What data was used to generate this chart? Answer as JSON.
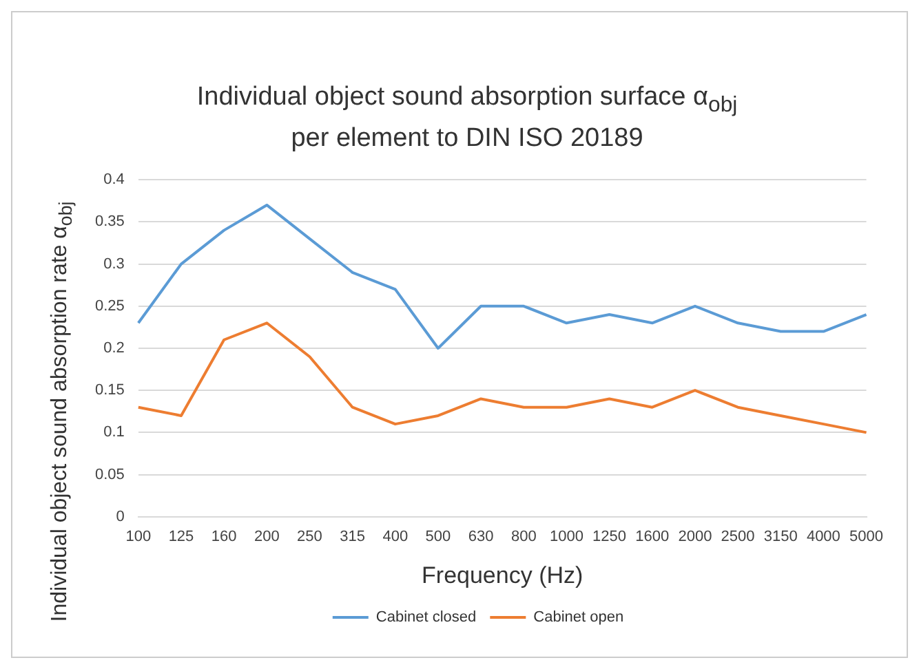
{
  "chart_data": {
    "type": "line",
    "title": "Individual object sound absorption surface α$_{obj}$ per element to DIN ISO 20189",
    "xlabel": "Frequency (Hz)",
    "ylabel": "Individual object sound absorption rate α$_{obj}$",
    "categories": [
      "100",
      "125",
      "160",
      "200",
      "250",
      "315",
      "400",
      "500",
      "630",
      "800",
      "1000",
      "1250",
      "1600",
      "2000",
      "2500",
      "3150",
      "4000",
      "5000"
    ],
    "series": [
      {
        "name": "Cabinet closed",
        "color": "#5b9bd5",
        "values": [
          0.23,
          0.3,
          0.34,
          0.37,
          0.33,
          0.29,
          0.27,
          0.2,
          0.25,
          0.25,
          0.23,
          0.24,
          0.23,
          0.25,
          0.23,
          0.22,
          0.22,
          0.24
        ]
      },
      {
        "name": "Cabinet open",
        "color": "#ed7d31",
        "values": [
          0.13,
          0.12,
          0.21,
          0.23,
          0.19,
          0.13,
          0.11,
          0.12,
          0.14,
          0.13,
          0.13,
          0.14,
          0.13,
          0.15,
          0.13,
          0.12,
          0.11,
          0.1
        ]
      }
    ],
    "ylim": [
      0,
      0.4
    ],
    "yticks": [
      0,
      0.05,
      0.1,
      0.15,
      0.2,
      0.25,
      0.3,
      0.35,
      0.4
    ],
    "grid": "y",
    "legend": "bottom",
    "line_style": "solid"
  }
}
